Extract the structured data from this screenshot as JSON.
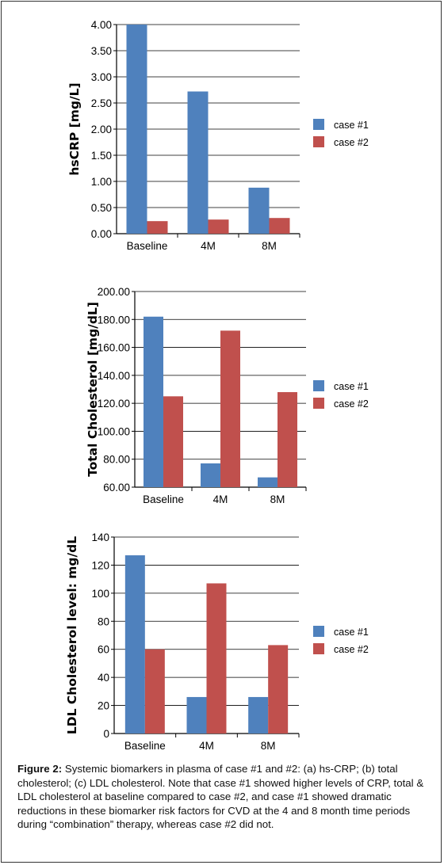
{
  "colors": {
    "case1": "#4f81bd",
    "case2": "#c0504d"
  },
  "chart_data": [
    {
      "type": "bar",
      "categories": [
        "Baseline",
        "4M",
        "8M"
      ],
      "series": [
        {
          "name": "case #1",
          "values": [
            4.0,
            2.72,
            0.88
          ]
        },
        {
          "name": "case #2",
          "values": [
            0.24,
            0.27,
            0.3
          ]
        }
      ],
      "ylabel": "hsCRP [mg/L]",
      "ylim": [
        0,
        4
      ],
      "yticks": [
        "0.00",
        "0.50",
        "1.00",
        "1.50",
        "2.00",
        "2.50",
        "3.00",
        "3.50",
        "4.00"
      ],
      "grid": true,
      "legend": "right"
    },
    {
      "type": "bar",
      "categories": [
        "Baseline",
        "4M",
        "8M"
      ],
      "series": [
        {
          "name": "case #1",
          "values": [
            182,
            77,
            67
          ]
        },
        {
          "name": "case #2",
          "values": [
            125,
            172,
            128
          ]
        }
      ],
      "ylabel": "Total Cholesterol [mg/dL]",
      "ylim": [
        60,
        200
      ],
      "yticks": [
        "60.00",
        "80.00",
        "100.00",
        "120.00",
        "140.00",
        "160.00",
        "180.00",
        "200.00"
      ],
      "grid": true,
      "legend": "right"
    },
    {
      "type": "bar",
      "categories": [
        "Baseline",
        "4M",
        "8M"
      ],
      "series": [
        {
          "name": "case #1",
          "values": [
            127,
            26,
            26
          ]
        },
        {
          "name": "case #2",
          "values": [
            60,
            107,
            63
          ]
        }
      ],
      "ylabel": "LDL Cholesterol level: mg/dL",
      "ylim": [
        0,
        140
      ],
      "yticks": [
        "0",
        "20",
        "40",
        "60",
        "80",
        "100",
        "120",
        "140"
      ],
      "grid": true,
      "legend": "right"
    }
  ],
  "caption": {
    "label": "Figure 2:",
    "text": " Systemic biomarkers in plasma of case #1 and #2: (a) hs-CRP; (b) total cholesterol; (c) LDL cholesterol.  Note that case #1 showed higher levels of CRP, total & LDL cholesterol at baseline compared to case #2, and case #1 showed dramatic reductions in these biomarker risk factors for CVD at the 4 and 8 month time periods during “combination” therapy, whereas case #2 did not."
  }
}
